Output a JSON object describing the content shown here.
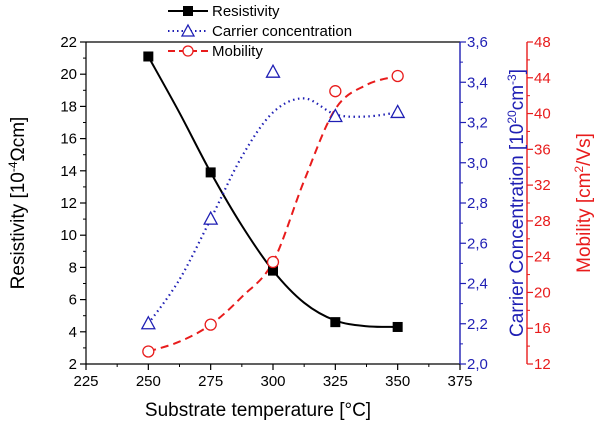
{
  "chart_data": {
    "type": "line",
    "xlabel": "Substrate temperature [°C]",
    "x_ticks": [
      "225",
      "250",
      "275",
      "300",
      "325",
      "350",
      "375"
    ],
    "xlim": [
      225,
      375
    ],
    "axes": {
      "left": {
        "label_parts": [
          "Resistivity [10",
          "-4",
          "Ωcm]"
        ],
        "ylim": [
          2,
          22
        ],
        "ticks": [
          "2",
          "4",
          "6",
          "8",
          "10",
          "12",
          "14",
          "16",
          "18",
          "20",
          "22"
        ],
        "color": "#000000"
      },
      "right1": {
        "label_parts": [
          "Carrier Concentration [10",
          "20",
          "cm",
          "-3",
          "]"
        ],
        "ylim": [
          2.0,
          3.6
        ],
        "ticks": [
          "2,0",
          "2,2",
          "2,4",
          "2,6",
          "2,8",
          "3,0",
          "3,2",
          "3,4",
          "3,6"
        ],
        "color": "#1f1fb4"
      },
      "right2": {
        "label_parts": [
          "Mobility [cm",
          "2",
          "/Vs]"
        ],
        "ylim": [
          12,
          48
        ],
        "ticks": [
          "12",
          "16",
          "20",
          "24",
          "28",
          "32",
          "36",
          "40",
          "44",
          "48"
        ],
        "color": "#e81c1c"
      }
    },
    "series": [
      {
        "name": "Resistivity",
        "axis": "left",
        "marker": "square",
        "line": "solid",
        "color": "#000000",
        "x": [
          250,
          275,
          300,
          325,
          350
        ],
        "values": [
          21.1,
          13.9,
          7.8,
          4.6,
          4.3
        ],
        "fit_x": [
          250,
          262.5,
          275,
          287.5,
          300,
          312.5,
          325,
          337.5,
          350
        ],
        "fit_y": [
          21.1,
          17.6,
          13.9,
          10.6,
          7.8,
          5.8,
          4.7,
          4.35,
          4.3
        ]
      },
      {
        "name": "Carrier concentration",
        "axis": "right1",
        "marker": "triangle",
        "line": "dotted",
        "color": "#1f1fb4",
        "x": [
          250,
          275,
          300,
          325,
          350
        ],
        "values": [
          2.2,
          2.72,
          3.45,
          3.23,
          3.25
        ],
        "fit_x": [
          250,
          262.5,
          275,
          287.5,
          300,
          312.5,
          325,
          337.5,
          350
        ],
        "fit_y": [
          2.2,
          2.42,
          2.72,
          3.03,
          3.25,
          3.32,
          3.24,
          3.23,
          3.25
        ]
      },
      {
        "name": "Mobility",
        "axis": "right2",
        "marker": "circle",
        "line": "dashed",
        "color": "#e81c1c",
        "x": [
          250,
          275,
          300,
          325,
          350
        ],
        "values": [
          13.4,
          16.4,
          23.4,
          42.5,
          44.2
        ],
        "fit_x": [
          250,
          262.5,
          275,
          287.5,
          300,
          312.5,
          325,
          337.5,
          350
        ],
        "fit_y": [
          13.4,
          14.5,
          16.4,
          19.5,
          23.4,
          32.5,
          40.5,
          43.2,
          44.2
        ]
      }
    ],
    "legend_position": "top-center"
  }
}
